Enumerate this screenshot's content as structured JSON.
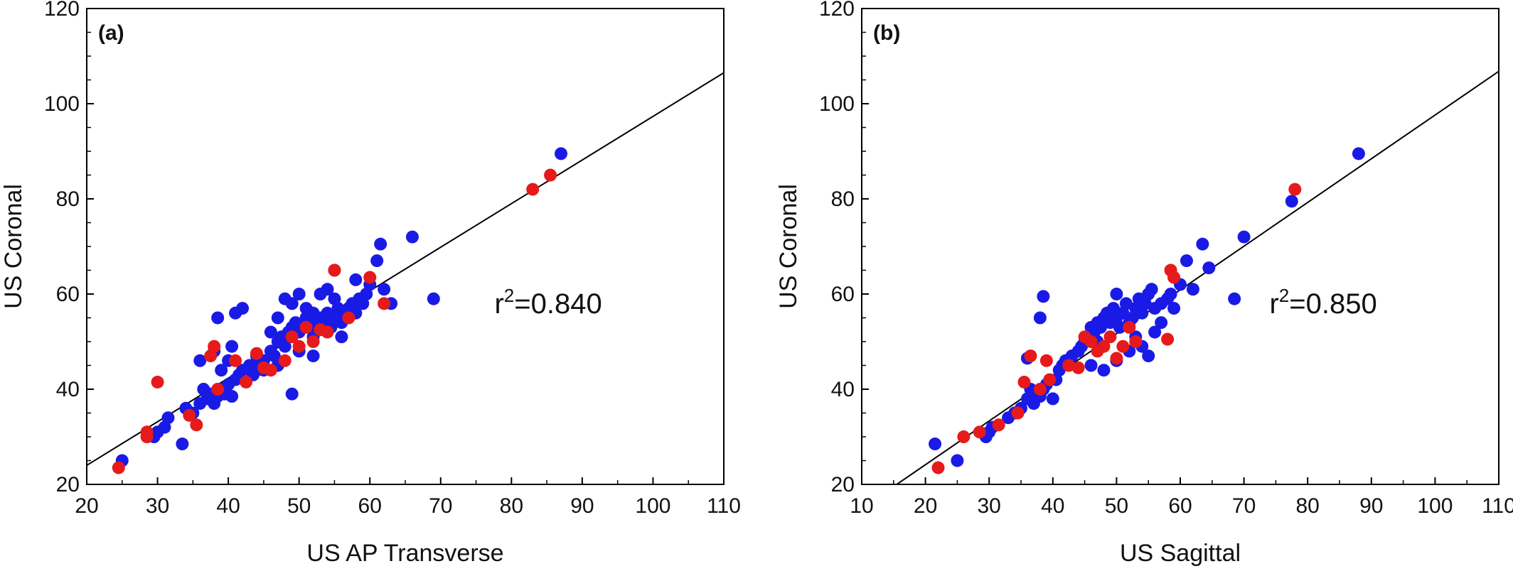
{
  "chart_data": [
    {
      "type": "scatter",
      "panel_label": "(a)",
      "xlabel": "US AP Transverse",
      "ylabel": "US Coronal",
      "xlim": [
        20,
        110
      ],
      "ylim": [
        20,
        120
      ],
      "xticks": [
        "20",
        "30",
        "40",
        "50",
        "60",
        "70",
        "80",
        "90",
        "100",
        "110"
      ],
      "yticks": [
        "20",
        "40",
        "60",
        "80",
        "100",
        "120"
      ],
      "annotation": {
        "base": "r",
        "sup": "2",
        "value": "=0.840"
      },
      "fit_line": {
        "x": [
          20,
          110
        ],
        "y": [
          24.0,
          106.5
        ]
      },
      "series": [
        {
          "color": "#1a1ae6",
          "points": [
            [
              25,
              25
            ],
            [
              29.5,
              30
            ],
            [
              30,
              31
            ],
            [
              31,
              32
            ],
            [
              31.5,
              34
            ],
            [
              33.5,
              28.5
            ],
            [
              34,
              36
            ],
            [
              35,
              35
            ],
            [
              36,
              37
            ],
            [
              36.5,
              40
            ],
            [
              37,
              38
            ],
            [
              37.5,
              39
            ],
            [
              38,
              37
            ],
            [
              38.5,
              38.5
            ],
            [
              39,
              40
            ],
            [
              39.5,
              39
            ],
            [
              40,
              41
            ],
            [
              40.5,
              38.5
            ],
            [
              41,
              42
            ],
            [
              41.5,
              43
            ],
            [
              42,
              44
            ],
            [
              43,
              45
            ],
            [
              43.5,
              43
            ],
            [
              44,
              44
            ],
            [
              44.5,
              45
            ],
            [
              45,
              46
            ],
            [
              46,
              48
            ],
            [
              46.5,
              47
            ],
            [
              47,
              50
            ],
            [
              47.5,
              51
            ],
            [
              48,
              49
            ],
            [
              48.5,
              52
            ],
            [
              49,
              53
            ],
            [
              49.5,
              54
            ],
            [
              50,
              52
            ],
            [
              50.5,
              53
            ],
            [
              51,
              55
            ],
            [
              51.5,
              54
            ],
            [
              52,
              56
            ],
            [
              52.5,
              53
            ],
            [
              53,
              55
            ],
            [
              53.5,
              54
            ],
            [
              54,
              56
            ],
            [
              54.5,
              53
            ],
            [
              55,
              55
            ],
            [
              55.5,
              57
            ],
            [
              56,
              54
            ],
            [
              56.5,
              56
            ],
            [
              57,
              57
            ],
            [
              57.5,
              58
            ],
            [
              58,
              56
            ],
            [
              58.5,
              59
            ],
            [
              59,
              58
            ],
            [
              59.5,
              60
            ],
            [
              60,
              62
            ],
            [
              61,
              67
            ],
            [
              61.5,
              70.5
            ],
            [
              62,
              61
            ],
            [
              63,
              58
            ],
            [
              66,
              72
            ],
            [
              69,
              59
            ],
            [
              87,
              89.5
            ],
            [
              36,
              46
            ],
            [
              38,
              48
            ],
            [
              38.5,
              55
            ],
            [
              39,
              44
            ],
            [
              40,
              46
            ],
            [
              40.5,
              49
            ],
            [
              41,
              56
            ],
            [
              42,
              57
            ],
            [
              44,
              47
            ],
            [
              46,
              52
            ],
            [
              47,
              55
            ],
            [
              48,
              59
            ],
            [
              49,
              58
            ],
            [
              50,
              60
            ],
            [
              51,
              57
            ],
            [
              52,
              51
            ],
            [
              53,
              60
            ],
            [
              54,
              61
            ],
            [
              55,
              59
            ],
            [
              49,
              39
            ],
            [
              50,
              48
            ],
            [
              55,
              65
            ],
            [
              58,
              63
            ],
            [
              52,
              47
            ],
            [
              56,
              51
            ],
            [
              47,
              45
            ],
            [
              45,
              44
            ]
          ]
        },
        {
          "color": "#e61a1a",
          "points": [
            [
              24.5,
              23.5
            ],
            [
              28.5,
              30
            ],
            [
              28.5,
              31
            ],
            [
              30,
              41.5
            ],
            [
              34.5,
              34.5
            ],
            [
              35.5,
              32.5
            ],
            [
              37.5,
              47
            ],
            [
              38,
              49
            ],
            [
              38.5,
              40
            ],
            [
              41,
              46
            ],
            [
              42.5,
              41.5
            ],
            [
              44,
              47.5
            ],
            [
              45,
              44.5
            ],
            [
              46,
              44
            ],
            [
              48,
              46
            ],
            [
              49,
              51
            ],
            [
              50,
              49
            ],
            [
              51,
              53
            ],
            [
              52,
              50
            ],
            [
              53,
              52.5
            ],
            [
              54,
              52
            ],
            [
              55,
              65
            ],
            [
              57,
              55
            ],
            [
              60,
              63.5
            ],
            [
              62,
              58
            ],
            [
              83,
              82
            ],
            [
              85.5,
              85
            ]
          ]
        }
      ]
    },
    {
      "type": "scatter",
      "panel_label": "(b)",
      "xlabel": "US Sagittal",
      "ylabel": "US Coronal",
      "xlim": [
        10,
        110
      ],
      "ylim": [
        20,
        120
      ],
      "xticks": [
        "10",
        "20",
        "30",
        "40",
        "50",
        "60",
        "70",
        "80",
        "90",
        "100",
        "110"
      ],
      "yticks": [
        "20",
        "40",
        "60",
        "80",
        "100",
        "120"
      ],
      "annotation": {
        "base": "r",
        "sup": "2",
        "value": "=0.850"
      },
      "fit_line": {
        "x": [
          15.5,
          110
        ],
        "y": [
          20,
          106.8
        ]
      },
      "series": [
        {
          "color": "#1a1ae6",
          "points": [
            [
              21.5,
              28.5
            ],
            [
              25,
              25
            ],
            [
              29.5,
              30
            ],
            [
              30,
              31
            ],
            [
              30.5,
              32
            ],
            [
              33,
              34
            ],
            [
              34,
              35
            ],
            [
              35,
              36
            ],
            [
              36,
              38
            ],
            [
              36.5,
              40
            ],
            [
              37,
              37
            ],
            [
              37.5,
              39
            ],
            [
              38,
              38.5
            ],
            [
              38.5,
              40
            ],
            [
              39,
              41
            ],
            [
              40,
              38
            ],
            [
              40.5,
              42
            ],
            [
              41,
              44
            ],
            [
              41.5,
              45
            ],
            [
              42,
              46
            ],
            [
              43,
              47
            ],
            [
              44,
              48
            ],
            [
              44.5,
              49
            ],
            [
              45,
              50
            ],
            [
              45.5,
              51
            ],
            [
              46,
              53
            ],
            [
              46.5,
              52
            ],
            [
              47,
              54
            ],
            [
              47.5,
              53
            ],
            [
              48,
              55
            ],
            [
              48.5,
              56
            ],
            [
              49,
              54
            ],
            [
              49.5,
              57
            ],
            [
              50,
              55
            ],
            [
              50.5,
              53
            ],
            [
              51,
              56
            ],
            [
              51.5,
              58
            ],
            [
              52,
              54
            ],
            [
              52.5,
              55
            ],
            [
              53,
              57
            ],
            [
              53.5,
              59
            ],
            [
              54,
              56
            ],
            [
              54.5,
              58
            ],
            [
              55,
              60
            ],
            [
              55.5,
              61
            ],
            [
              56,
              57
            ],
            [
              57,
              58
            ],
            [
              58,
              59
            ],
            [
              58.5,
              60
            ],
            [
              59,
              57
            ],
            [
              60,
              62
            ],
            [
              61,
              67
            ],
            [
              62,
              61
            ],
            [
              63.5,
              70.5
            ],
            [
              64.5,
              65.5
            ],
            [
              68.5,
              59
            ],
            [
              70,
              72
            ],
            [
              77.5,
              79.5
            ],
            [
              88,
              89.5
            ],
            [
              36,
              46.5
            ],
            [
              38,
              55
            ],
            [
              38.5,
              59.5
            ],
            [
              46,
              45
            ],
            [
              48,
              44
            ],
            [
              50,
              46
            ],
            [
              52,
              48
            ],
            [
              53,
              51
            ],
            [
              54,
              49
            ],
            [
              55,
              47
            ],
            [
              56,
              52
            ],
            [
              57,
              54
            ],
            [
              50,
              60
            ],
            [
              47,
              50
            ]
          ]
        },
        {
          "color": "#e61a1a",
          "points": [
            [
              22,
              23.5
            ],
            [
              26,
              30
            ],
            [
              28.5,
              31
            ],
            [
              31.5,
              32.5
            ],
            [
              34.5,
              35
            ],
            [
              35.5,
              41.5
            ],
            [
              36.5,
              47
            ],
            [
              38,
              40
            ],
            [
              39,
              46
            ],
            [
              39.5,
              42
            ],
            [
              42.5,
              45
            ],
            [
              44,
              44.5
            ],
            [
              45,
              51
            ],
            [
              46,
              50
            ],
            [
              47,
              48
            ],
            [
              48,
              49
            ],
            [
              49,
              51
            ],
            [
              50,
              46.5
            ],
            [
              51,
              49
            ],
            [
              52,
              53
            ],
            [
              53,
              50
            ],
            [
              58,
              50.5
            ],
            [
              58.5,
              65
            ],
            [
              59,
              63.5
            ],
            [
              78,
              82
            ]
          ]
        }
      ]
    }
  ]
}
